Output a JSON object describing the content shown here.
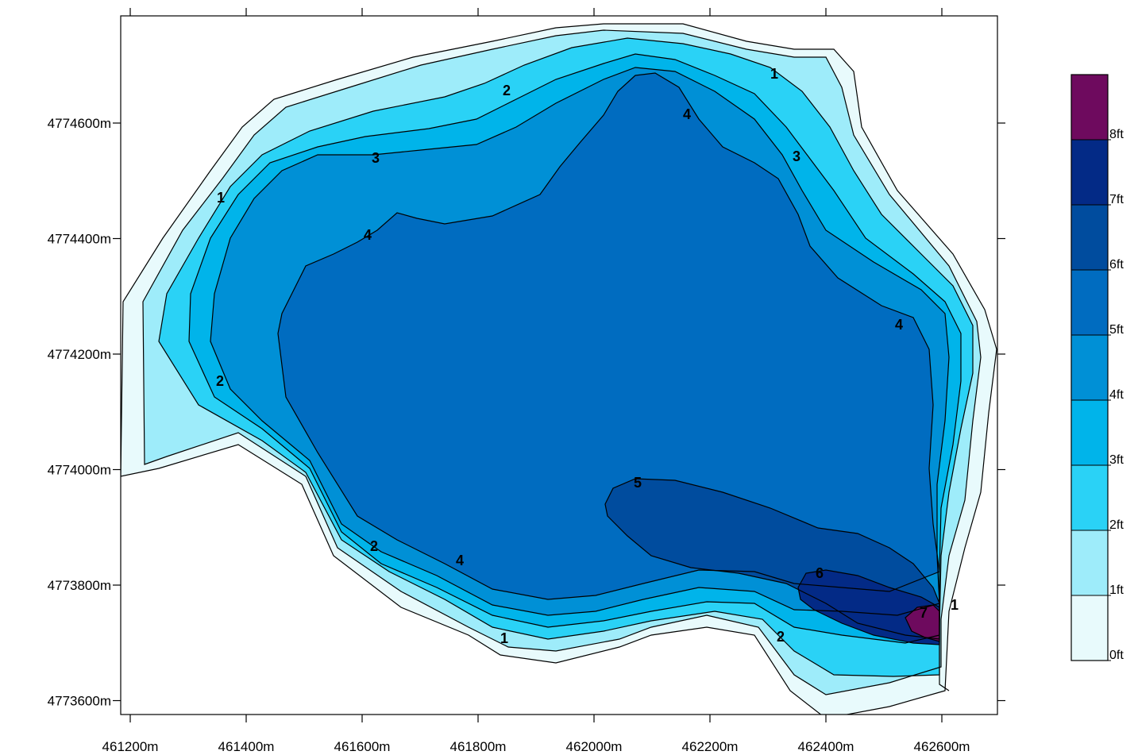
{
  "map": {
    "x_axis": {
      "unit": "m",
      "ticks": [
        "461200m",
        "461400m",
        "461600m",
        "461800m",
        "462000m",
        "462200m",
        "462400m",
        "462600m"
      ]
    },
    "y_axis": {
      "unit": "m",
      "ticks": [
        "4774600m",
        "4774400m",
        "4774200m",
        "4774000m",
        "4773800m",
        "4773600m"
      ]
    },
    "contour_labels": [
      "1",
      "1",
      "1",
      "1",
      "2",
      "2",
      "2",
      "2",
      "3",
      "3",
      "4",
      "4",
      "4",
      "4",
      "5",
      "6",
      "7"
    ],
    "legend": {
      "labels": [
        "0ft",
        "1ft",
        "2ft",
        "3ft",
        "4ft",
        "5ft",
        "6ft",
        "7ft",
        "8ft"
      ],
      "colors": [
        "#e8fafc",
        "#9eecfa",
        "#2ad2f6",
        "#00b4ea",
        "#0090d6",
        "#006cc0",
        "#004c9e",
        "#032a86",
        "#6e0a5e"
      ]
    }
  }
}
